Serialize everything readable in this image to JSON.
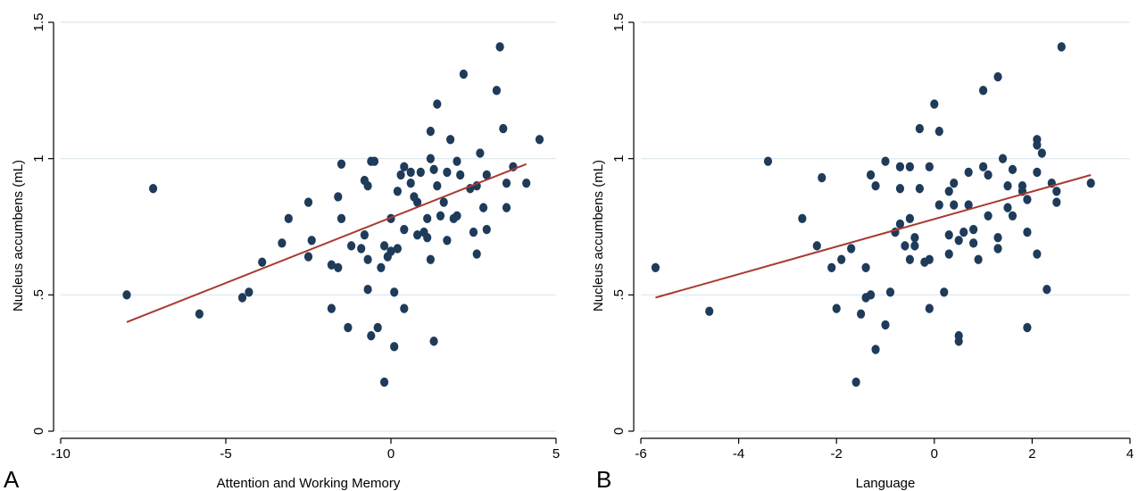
{
  "figure": {
    "colors": {
      "point": "#1f3b5a",
      "fit_line": "#a83a32",
      "grid": "#dbe7ed",
      "axis": "#000000"
    }
  },
  "chart_data": [
    {
      "type": "scatter",
      "panel_label": "A",
      "xlabel": "Attention and Working Memory",
      "ylabel": "Nucleus accumbens (mL)",
      "xlim": [
        -10,
        5
      ],
      "ylim": [
        0,
        1.5
      ],
      "xticks": [
        -10,
        -5,
        0,
        5
      ],
      "xtick_labels": [
        "-10",
        "-5",
        "0",
        "5"
      ],
      "yticks": [
        0,
        0.5,
        1,
        1.5
      ],
      "ytick_labels": [
        "0",
        ".5",
        "1",
        "1.5"
      ],
      "grid": "horizontal",
      "fit_line": {
        "x": [
          -8.0,
          4.1
        ],
        "y": [
          0.4,
          0.98
        ]
      },
      "points": [
        {
          "x": -8.0,
          "y": 0.5
        },
        {
          "x": -7.2,
          "y": 0.89
        },
        {
          "x": -5.8,
          "y": 0.43
        },
        {
          "x": -4.5,
          "y": 0.49
        },
        {
          "x": -4.3,
          "y": 0.51
        },
        {
          "x": -3.9,
          "y": 0.62
        },
        {
          "x": -3.3,
          "y": 0.69
        },
        {
          "x": -3.1,
          "y": 0.78
        },
        {
          "x": -2.5,
          "y": 0.84
        },
        {
          "x": -2.4,
          "y": 0.7
        },
        {
          "x": -2.5,
          "y": 0.64
        },
        {
          "x": -1.8,
          "y": 0.61
        },
        {
          "x": -1.6,
          "y": 0.6
        },
        {
          "x": -1.8,
          "y": 0.45
        },
        {
          "x": -1.5,
          "y": 0.98
        },
        {
          "x": -1.6,
          "y": 0.86
        },
        {
          "x": -1.5,
          "y": 0.78
        },
        {
          "x": -1.3,
          "y": 0.38
        },
        {
          "x": -1.2,
          "y": 0.68
        },
        {
          "x": -0.9,
          "y": 0.67
        },
        {
          "x": -0.8,
          "y": 0.92
        },
        {
          "x": -0.8,
          "y": 0.72
        },
        {
          "x": -0.7,
          "y": 0.63
        },
        {
          "x": -0.7,
          "y": 0.52
        },
        {
          "x": -0.6,
          "y": 0.99
        },
        {
          "x": -0.5,
          "y": 0.99
        },
        {
          "x": -0.6,
          "y": 0.35
        },
        {
          "x": -0.4,
          "y": 0.38
        },
        {
          "x": -0.7,
          "y": 0.9
        },
        {
          "x": -0.3,
          "y": 0.6
        },
        {
          "x": -0.2,
          "y": 0.68
        },
        {
          "x": -0.2,
          "y": 0.18
        },
        {
          "x": -0.1,
          "y": 0.64
        },
        {
          "x": 0.0,
          "y": 0.78
        },
        {
          "x": 0.0,
          "y": 0.66
        },
        {
          "x": 0.1,
          "y": 0.31
        },
        {
          "x": 0.1,
          "y": 0.51
        },
        {
          "x": 0.2,
          "y": 0.67
        },
        {
          "x": 0.2,
          "y": 0.88
        },
        {
          "x": 0.3,
          "y": 0.94
        },
        {
          "x": 0.4,
          "y": 0.97
        },
        {
          "x": 0.4,
          "y": 0.74
        },
        {
          "x": 0.4,
          "y": 0.45
        },
        {
          "x": 0.6,
          "y": 0.95
        },
        {
          "x": 0.6,
          "y": 0.91
        },
        {
          "x": 0.7,
          "y": 0.86
        },
        {
          "x": 0.8,
          "y": 0.84
        },
        {
          "x": 0.8,
          "y": 0.72
        },
        {
          "x": 0.9,
          "y": 0.95
        },
        {
          "x": 1.0,
          "y": 0.73
        },
        {
          "x": 1.1,
          "y": 0.78
        },
        {
          "x": 1.1,
          "y": 0.71
        },
        {
          "x": 1.2,
          "y": 0.63
        },
        {
          "x": 1.2,
          "y": 1.1
        },
        {
          "x": 1.2,
          "y": 1.0
        },
        {
          "x": 1.3,
          "y": 0.96
        },
        {
          "x": 1.3,
          "y": 0.33
        },
        {
          "x": 1.4,
          "y": 1.2
        },
        {
          "x": 1.4,
          "y": 0.9
        },
        {
          "x": 1.5,
          "y": 0.79
        },
        {
          "x": 1.6,
          "y": 0.84
        },
        {
          "x": 1.7,
          "y": 0.7
        },
        {
          "x": 1.7,
          "y": 0.95
        },
        {
          "x": 1.8,
          "y": 1.07
        },
        {
          "x": 1.9,
          "y": 0.78
        },
        {
          "x": 2.0,
          "y": 0.79
        },
        {
          "x": 2.0,
          "y": 0.99
        },
        {
          "x": 2.1,
          "y": 0.94
        },
        {
          "x": 2.2,
          "y": 1.31
        },
        {
          "x": 2.4,
          "y": 0.89
        },
        {
          "x": 2.5,
          "y": 0.73
        },
        {
          "x": 2.6,
          "y": 0.65
        },
        {
          "x": 2.6,
          "y": 0.9
        },
        {
          "x": 2.7,
          "y": 1.02
        },
        {
          "x": 2.8,
          "y": 0.82
        },
        {
          "x": 2.9,
          "y": 0.94
        },
        {
          "x": 2.9,
          "y": 0.74
        },
        {
          "x": 3.2,
          "y": 1.25
        },
        {
          "x": 3.3,
          "y": 1.41
        },
        {
          "x": 3.4,
          "y": 1.11
        },
        {
          "x": 3.5,
          "y": 0.91
        },
        {
          "x": 3.5,
          "y": 0.82
        },
        {
          "x": 3.7,
          "y": 0.97
        },
        {
          "x": 4.1,
          "y": 0.91
        },
        {
          "x": 4.5,
          "y": 1.07
        }
      ]
    },
    {
      "type": "scatter",
      "panel_label": "B",
      "xlabel": "Language",
      "ylabel": "Nucleus accumbens (mL)",
      "xlim": [
        -6,
        4
      ],
      "ylim": [
        0,
        1.5
      ],
      "xticks": [
        -6,
        -4,
        -2,
        0,
        2,
        4
      ],
      "xtick_labels": [
        "-6",
        "-4",
        "-2",
        "0",
        "2",
        "4"
      ],
      "yticks": [
        0,
        0.5,
        1,
        1.5
      ],
      "ytick_labels": [
        "0",
        ".5",
        "1",
        "1.5"
      ],
      "grid": "horizontal",
      "fit_line": {
        "x": [
          -5.7,
          3.2
        ],
        "y": [
          0.49,
          0.94
        ]
      },
      "points": [
        {
          "x": -5.7,
          "y": 0.6
        },
        {
          "x": -4.6,
          "y": 0.44
        },
        {
          "x": -3.4,
          "y": 0.99
        },
        {
          "x": -2.7,
          "y": 0.78
        },
        {
          "x": -2.4,
          "y": 0.68
        },
        {
          "x": -2.3,
          "y": 0.93
        },
        {
          "x": -2.1,
          "y": 0.6
        },
        {
          "x": -2.0,
          "y": 0.45
        },
        {
          "x": -1.9,
          "y": 0.63
        },
        {
          "x": -1.7,
          "y": 0.67
        },
        {
          "x": -1.6,
          "y": 0.18
        },
        {
          "x": -1.5,
          "y": 0.43
        },
        {
          "x": -1.4,
          "y": 0.49
        },
        {
          "x": -1.4,
          "y": 0.6
        },
        {
          "x": -1.3,
          "y": 0.5
        },
        {
          "x": -1.3,
          "y": 0.94
        },
        {
          "x": -1.2,
          "y": 0.9
        },
        {
          "x": -1.2,
          "y": 0.3
        },
        {
          "x": -1.0,
          "y": 0.99
        },
        {
          "x": -1.0,
          "y": 0.39
        },
        {
          "x": -0.9,
          "y": 0.51
        },
        {
          "x": -0.8,
          "y": 0.73
        },
        {
          "x": -0.7,
          "y": 0.97
        },
        {
          "x": -0.7,
          "y": 0.89
        },
        {
          "x": -0.7,
          "y": 0.76
        },
        {
          "x": -0.6,
          "y": 0.68
        },
        {
          "x": -0.5,
          "y": 0.97
        },
        {
          "x": -0.5,
          "y": 0.63
        },
        {
          "x": -0.5,
          "y": 0.78
        },
        {
          "x": -0.4,
          "y": 0.71
        },
        {
          "x": -0.4,
          "y": 0.68
        },
        {
          "x": -0.3,
          "y": 0.89
        },
        {
          "x": -0.3,
          "y": 1.11
        },
        {
          "x": -0.2,
          "y": 0.62
        },
        {
          "x": -0.1,
          "y": 0.97
        },
        {
          "x": -0.1,
          "y": 0.63
        },
        {
          "x": -0.1,
          "y": 0.45
        },
        {
          "x": 0.0,
          "y": 1.2
        },
        {
          "x": 0.1,
          "y": 1.1
        },
        {
          "x": 0.1,
          "y": 0.83
        },
        {
          "x": 0.2,
          "y": 0.51
        },
        {
          "x": 0.3,
          "y": 0.88
        },
        {
          "x": 0.3,
          "y": 0.72
        },
        {
          "x": 0.3,
          "y": 0.65
        },
        {
          "x": 0.4,
          "y": 0.91
        },
        {
          "x": 0.4,
          "y": 0.83
        },
        {
          "x": 0.5,
          "y": 0.7
        },
        {
          "x": 0.5,
          "y": 0.35
        },
        {
          "x": 0.5,
          "y": 0.33
        },
        {
          "x": 0.6,
          "y": 0.73
        },
        {
          "x": 0.7,
          "y": 0.95
        },
        {
          "x": 0.7,
          "y": 0.83
        },
        {
          "x": 0.8,
          "y": 0.74
        },
        {
          "x": 0.8,
          "y": 0.69
        },
        {
          "x": 0.9,
          "y": 0.63
        },
        {
          "x": 1.0,
          "y": 1.25
        },
        {
          "x": 1.0,
          "y": 0.97
        },
        {
          "x": 1.1,
          "y": 0.94
        },
        {
          "x": 1.1,
          "y": 0.79
        },
        {
          "x": 1.3,
          "y": 1.3
        },
        {
          "x": 1.3,
          "y": 0.71
        },
        {
          "x": 1.3,
          "y": 0.67
        },
        {
          "x": 1.4,
          "y": 1.0
        },
        {
          "x": 1.5,
          "y": 0.9
        },
        {
          "x": 1.5,
          "y": 0.82
        },
        {
          "x": 1.6,
          "y": 0.96
        },
        {
          "x": 1.6,
          "y": 0.79
        },
        {
          "x": 1.8,
          "y": 0.9
        },
        {
          "x": 1.8,
          "y": 0.88
        },
        {
          "x": 1.9,
          "y": 0.85
        },
        {
          "x": 1.9,
          "y": 0.38
        },
        {
          "x": 1.9,
          "y": 0.73
        },
        {
          "x": 2.1,
          "y": 1.07
        },
        {
          "x": 2.1,
          "y": 1.05
        },
        {
          "x": 2.1,
          "y": 0.95
        },
        {
          "x": 2.1,
          "y": 0.65
        },
        {
          "x": 2.2,
          "y": 1.02
        },
        {
          "x": 2.3,
          "y": 0.52
        },
        {
          "x": 2.4,
          "y": 0.91
        },
        {
          "x": 2.5,
          "y": 0.88
        },
        {
          "x": 2.5,
          "y": 0.84
        },
        {
          "x": 2.6,
          "y": 1.41
        },
        {
          "x": 3.2,
          "y": 0.91
        }
      ]
    }
  ]
}
